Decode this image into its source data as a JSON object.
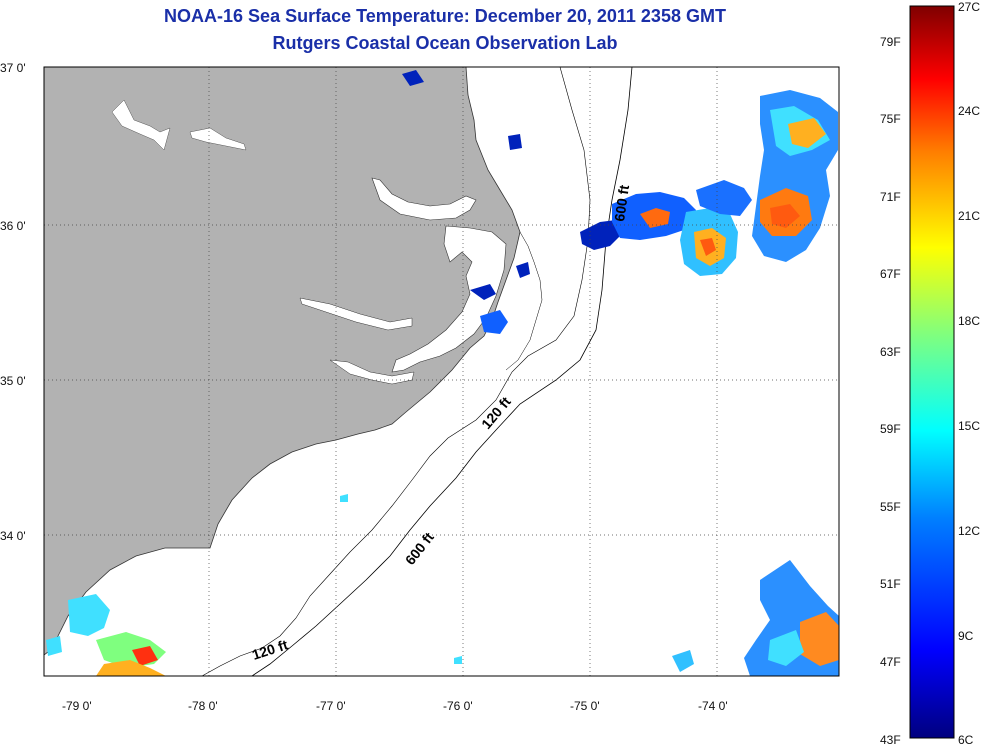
{
  "title": "NOAA-16 Sea Surface Temperature:  December 20, 2011 2358 GMT",
  "subtitle": "Rutgers Coastal Ocean Observation Lab",
  "map": {
    "lat_labels": [
      "37 0'",
      "36 0'",
      "35 0'",
      "34 0'"
    ],
    "lon_labels": [
      "-79 0'",
      "-78 0'",
      "-77 0'",
      "-76 0'",
      "-75 0'",
      "-74 0'"
    ],
    "contour_labels": {
      "shelf_north": "600 ft",
      "shelf_mid": "120 ft",
      "shelf_south": "600 ft",
      "shelf_sw": "120 ft"
    },
    "land_color": "#b2b2b2",
    "ocean_color": "#ffffff"
  },
  "colorbar": {
    "fahrenheit_labels": [
      "79F",
      "75F",
      "71F",
      "67F",
      "63F",
      "59F",
      "55F",
      "51F",
      "47F",
      "43F"
    ],
    "celsius_labels": [
      "27C",
      "24C",
      "21C",
      "18C",
      "15C",
      "12C",
      "9C",
      "6C"
    ],
    "colors": [
      "#00007f",
      "#0000ff",
      "#007fff",
      "#00ffff",
      "#7fff7f",
      "#ffff00",
      "#ff7f00",
      "#ff0000",
      "#7f0000"
    ]
  }
}
